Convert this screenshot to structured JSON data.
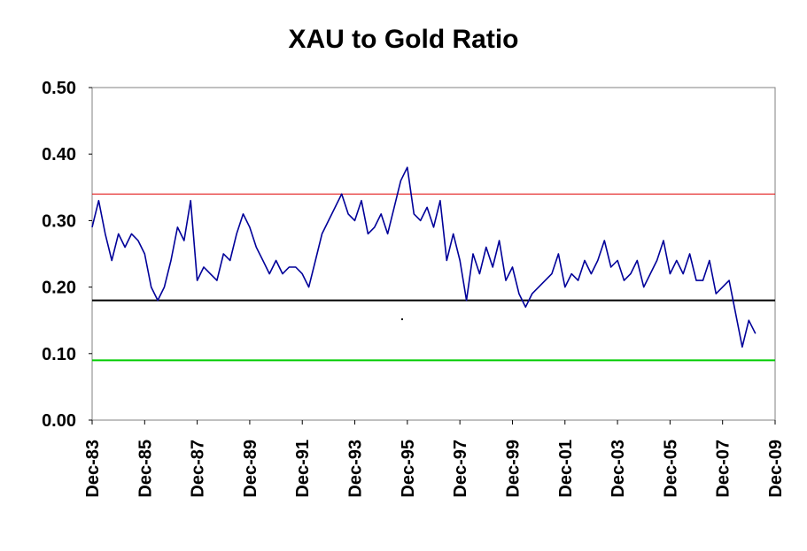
{
  "chart_data": {
    "type": "line",
    "title": "XAU to Gold Ratio",
    "xlabel": "",
    "ylabel": "",
    "ylim": [
      0.0,
      0.5
    ],
    "xlim": [
      1983.92,
      2009.92
    ],
    "y_ticks": [
      "0.00",
      "0.10",
      "0.20",
      "0.30",
      "0.40",
      "0.50"
    ],
    "x_ticks": [
      "Dec-83",
      "Dec-85",
      "Dec-87",
      "Dec-89",
      "Dec-91",
      "Dec-93",
      "Dec-95",
      "Dec-97",
      "Dec-99",
      "Dec-01",
      "Dec-03",
      "Dec-05",
      "Dec-07",
      "Dec-09"
    ],
    "grid": false,
    "legend": "none",
    "reference_lines": [
      {
        "y": 0.34,
        "color": "#e00000"
      },
      {
        "y": 0.18,
        "color": "#000000"
      },
      {
        "y": 0.09,
        "color": "#00cc00"
      }
    ],
    "series": [
      {
        "color": "#000099",
        "x": [
          1983.92,
          1984.17,
          1984.42,
          1984.67,
          1984.92,
          1985.17,
          1985.42,
          1985.67,
          1985.92,
          1986.17,
          1986.42,
          1986.67,
          1986.92,
          1987.17,
          1987.42,
          1987.67,
          1987.92,
          1988.17,
          1988.42,
          1988.67,
          1988.92,
          1989.17,
          1989.42,
          1989.67,
          1989.92,
          1990.17,
          1990.42,
          1990.67,
          1990.92,
          1991.17,
          1991.42,
          1991.67,
          1991.92,
          1992.17,
          1992.42,
          1992.67,
          1992.92,
          1993.17,
          1993.42,
          1993.67,
          1993.92,
          1994.17,
          1994.42,
          1994.67,
          1994.92,
          1995.17,
          1995.42,
          1995.67,
          1995.92,
          1996.17,
          1996.42,
          1996.67,
          1996.92,
          1997.17,
          1997.42,
          1997.67,
          1997.92,
          1998.17,
          1998.42,
          1998.67,
          1998.92,
          1999.17,
          1999.42,
          1999.67,
          1999.92,
          2000.17,
          2000.42,
          2000.67,
          2000.92,
          2001.17,
          2001.42,
          2001.67,
          2001.92,
          2002.17,
          2002.42,
          2002.67,
          2002.92,
          2003.17,
          2003.42,
          2003.67,
          2003.92,
          2004.17,
          2004.42,
          2004.67,
          2004.92,
          2005.17,
          2005.42,
          2005.67,
          2005.92,
          2006.17,
          2006.42,
          2006.67,
          2006.92,
          2007.17,
          2007.42,
          2007.67,
          2007.92,
          2008.17,
          2008.42,
          2008.67,
          2008.92,
          2009.17
        ],
        "y": [
          0.29,
          0.33,
          0.28,
          0.24,
          0.28,
          0.26,
          0.28,
          0.27,
          0.25,
          0.2,
          0.18,
          0.2,
          0.24,
          0.29,
          0.27,
          0.33,
          0.21,
          0.23,
          0.22,
          0.21,
          0.25,
          0.24,
          0.28,
          0.31,
          0.29,
          0.26,
          0.24,
          0.22,
          0.24,
          0.22,
          0.23,
          0.23,
          0.22,
          0.2,
          0.24,
          0.28,
          0.3,
          0.32,
          0.34,
          0.31,
          0.3,
          0.33,
          0.28,
          0.29,
          0.31,
          0.28,
          0.32,
          0.36,
          0.38,
          0.31,
          0.3,
          0.32,
          0.29,
          0.33,
          0.24,
          0.28,
          0.24,
          0.18,
          0.25,
          0.22,
          0.26,
          0.23,
          0.27,
          0.21,
          0.23,
          0.19,
          0.17,
          0.19,
          0.2,
          0.21,
          0.22,
          0.25,
          0.2,
          0.22,
          0.21,
          0.24,
          0.22,
          0.24,
          0.27,
          0.23,
          0.24,
          0.21,
          0.22,
          0.24,
          0.2,
          0.22,
          0.24,
          0.27,
          0.22,
          0.24,
          0.22,
          0.25,
          0.21,
          0.21,
          0.24,
          0.19,
          0.2,
          0.21,
          0.16,
          0.11,
          0.15,
          0.13
        ]
      }
    ]
  }
}
